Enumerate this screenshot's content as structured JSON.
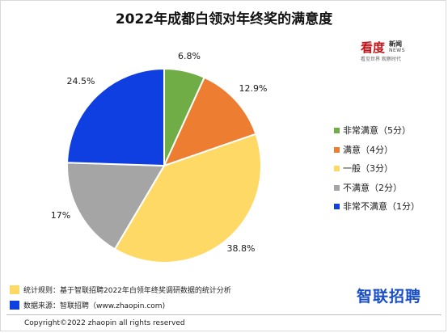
{
  "title": "2022年成都白领对年终奖的满意度",
  "brand": {
    "main": "看度",
    "news_cn": "新闻",
    "news_en": "NEWS",
    "sub": "看见世界 观察时代"
  },
  "chart_data": {
    "type": "pie",
    "title": "2022年成都白领对年终奖的满意度",
    "unit": "%",
    "slices": [
      {
        "name": "非常满意（5分）",
        "value": 6.8,
        "label": "6.8%",
        "color": "#70ad47"
      },
      {
        "name": "满意（4分）",
        "value": 12.9,
        "label": "12.9%",
        "color": "#ed7d31"
      },
      {
        "name": "一般（3分）",
        "value": 38.8,
        "label": "38.8%",
        "color": "#ffd966"
      },
      {
        "name": "不满意（2分）",
        "value": 17,
        "label": "17%",
        "color": "#a5a5a5"
      },
      {
        "name": "非常不满意（1分）",
        "value": 24.5,
        "label": "24.5%",
        "color": "#0f3fe0"
      }
    ],
    "legend_position": "right"
  },
  "notes": [
    {
      "text": "统计规则：基于智联招聘2022年白领年终奖调研数据的统计分析",
      "color": "#ffd966"
    },
    {
      "text": "数据来源：智联招聘（www.zhaopin.com)",
      "color": "#0f3fe0"
    }
  ],
  "footer_logo": "智联招聘",
  "copyright": "Copyright©2022 zhaopin all rights reserved"
}
